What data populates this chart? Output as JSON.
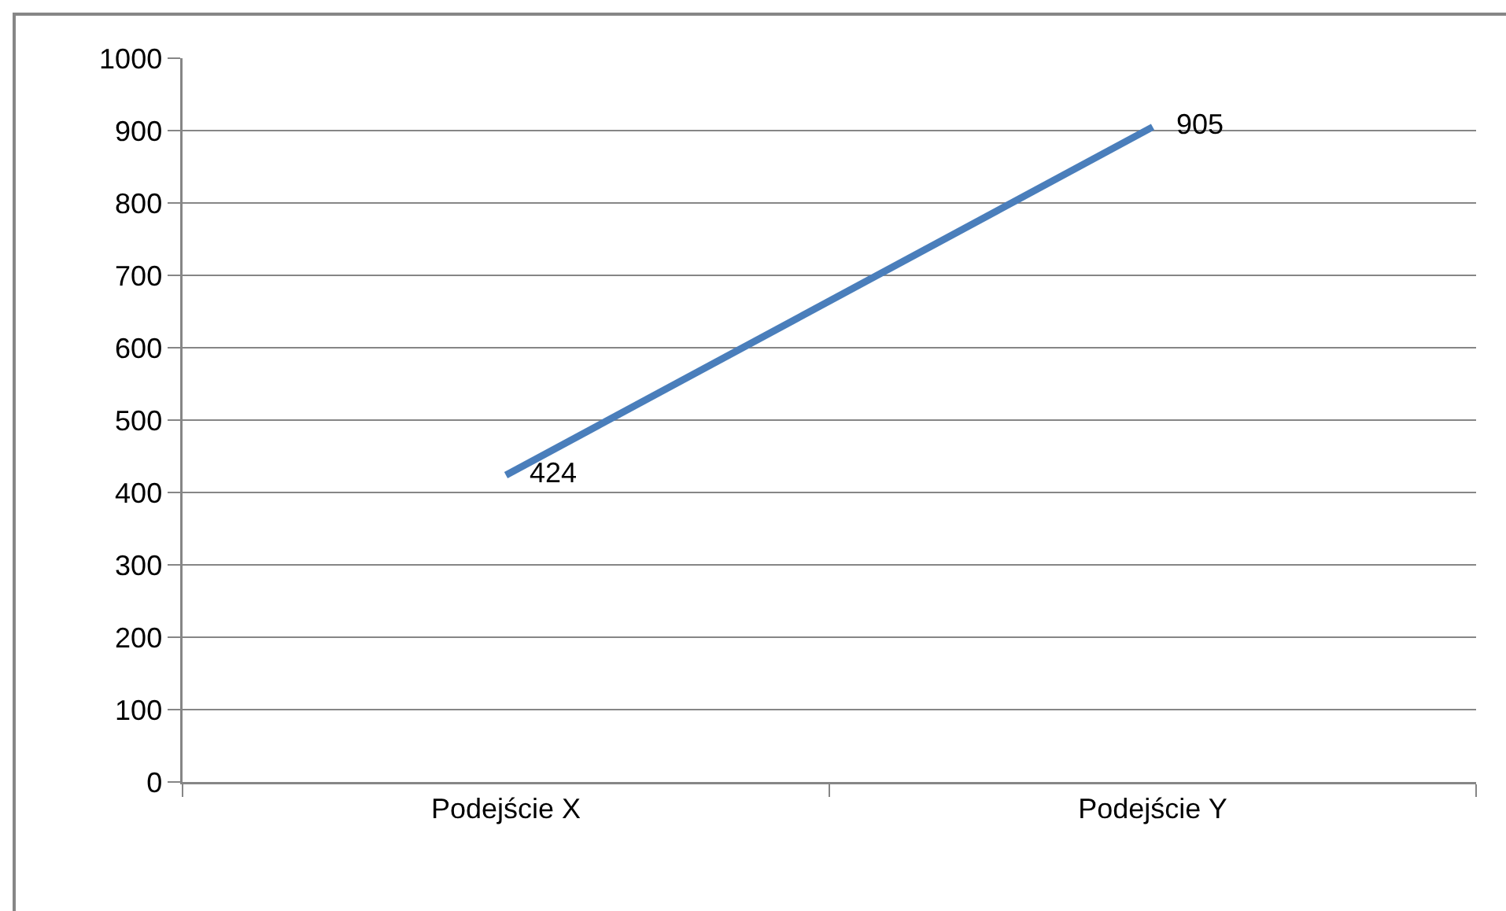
{
  "chart_data": {
    "type": "line",
    "categories": [
      "Podejście X",
      "Podejście Y"
    ],
    "series": [
      {
        "color": "#4a7ebb",
        "values": [
          424,
          905
        ]
      }
    ],
    "ylim": [
      0,
      1000
    ],
    "yticks": [
      0,
      100,
      200,
      300,
      400,
      500,
      600,
      700,
      800,
      900,
      1000
    ],
    "grid": "y",
    "data_labels": true
  }
}
